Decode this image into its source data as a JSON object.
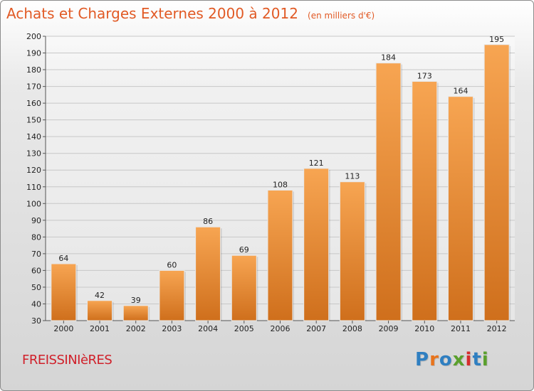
{
  "header": {
    "title": "Achats et Charges Externes 2000 à 2012",
    "subtitle": "(en milliers d'€)"
  },
  "footer": {
    "commune": "FREISSINIèRES",
    "logo_letters": [
      "P",
      "r",
      "o",
      "x",
      "i",
      "t",
      "i"
    ],
    "logo_colors": [
      "#2f7fc1",
      "#e8741c",
      "#2f7fc1",
      "#5aa02c",
      "#d62d2d",
      "#2f7fc1",
      "#5aa02c"
    ]
  },
  "colors": {
    "bar_top": "#f7a552",
    "bar_bottom": "#cf6f1c",
    "title": "#e15a25",
    "grid": "#c8c8c8"
  },
  "chart_data": {
    "type": "bar",
    "categories": [
      "2000",
      "2001",
      "2002",
      "2003",
      "2004",
      "2005",
      "2006",
      "2007",
      "2008",
      "2009",
      "2010",
      "2011",
      "2012"
    ],
    "values": [
      64,
      42,
      39,
      60,
      86,
      69,
      108,
      121,
      113,
      184,
      173,
      164,
      195
    ],
    "ylim": [
      30,
      200
    ],
    "yticks": [
      30,
      40,
      50,
      60,
      70,
      80,
      90,
      100,
      110,
      120,
      130,
      140,
      150,
      160,
      170,
      180,
      190,
      200
    ],
    "grid": true
  }
}
